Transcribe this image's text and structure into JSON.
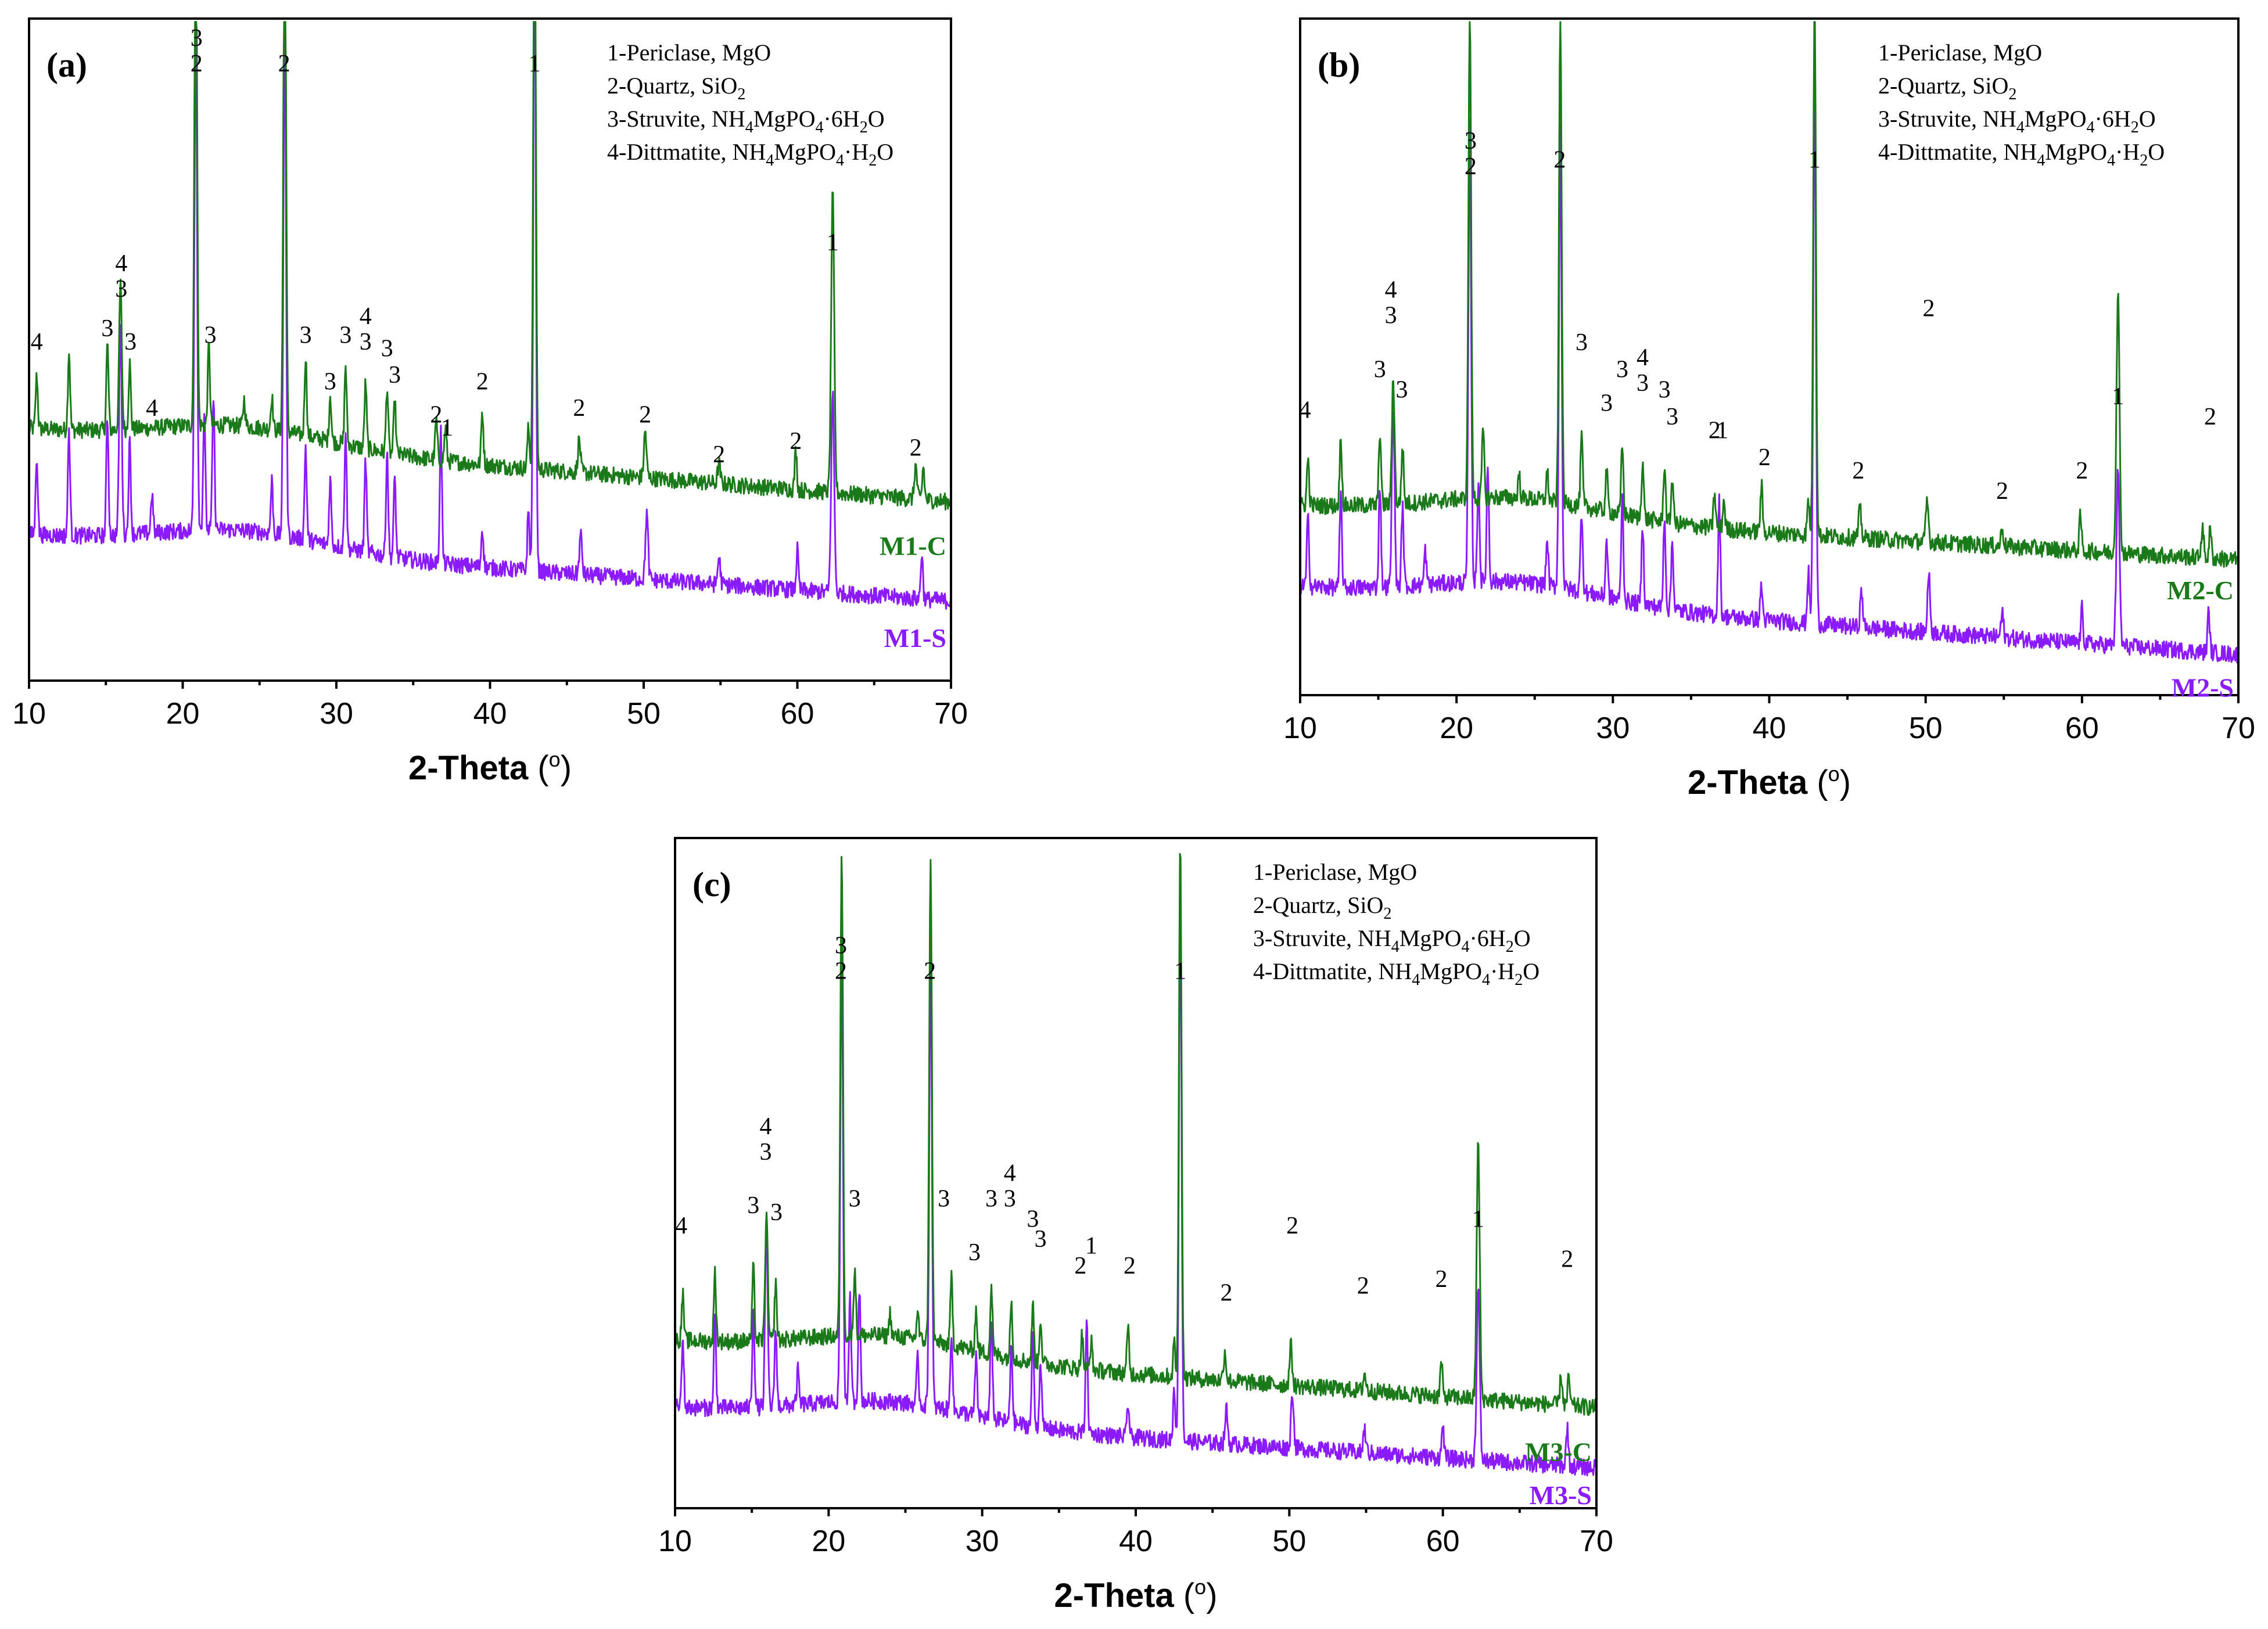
{
  "chart_data": [
    {
      "type": "line",
      "panel": "(a)",
      "xlabel": "2-Theta",
      "xunit": "o",
      "xlim": [
        10,
        70
      ],
      "xticks": [
        10,
        20,
        30,
        40,
        50,
        60,
        70
      ],
      "legend": [
        {
          "text": "1-Periclase, MgO"
        },
        {
          "text": "2-Quartz, SiO",
          "sub": "2"
        },
        {
          "text": "3-Struvite, NH",
          "sub": "4",
          "rest": "MgPO",
          "sub2": "4",
          "rest2": "·6H",
          "sub3": "2",
          "rest3": "O"
        },
        {
          "text": "4-Dittmatite, NH",
          "sub": "4",
          "rest": "MgPO",
          "sub2": "4",
          "rest2": "·H",
          "sub3": "2",
          "rest3": "O"
        }
      ],
      "series": [
        {
          "name": "M1-C",
          "color": "#1a7a1a"
        },
        {
          "name": "M1-S",
          "color": "#8b1aff"
        }
      ],
      "peak_labels": [
        {
          "x": 10.5,
          "labels": [
            "4"
          ],
          "level": 0.5
        },
        {
          "x": 15.1,
          "labels": [
            "3"
          ],
          "level": 0.52
        },
        {
          "x": 16.0,
          "labels": [
            "4",
            "3"
          ],
          "level": 0.58
        },
        {
          "x": 16.6,
          "labels": [
            "3"
          ],
          "level": 0.5
        },
        {
          "x": 18.0,
          "labels": [
            "4"
          ],
          "level": 0.4
        },
        {
          "x": 20.9,
          "labels": [
            "3",
            "2"
          ],
          "level": 0.92
        },
        {
          "x": 21.8,
          "labels": [
            "3"
          ],
          "level": 0.51
        },
        {
          "x": 26.6,
          "labels": [
            "2"
          ],
          "level": 0.92
        },
        {
          "x": 28.0,
          "labels": [
            "3"
          ],
          "level": 0.51
        },
        {
          "x": 29.6,
          "labels": [
            "3"
          ],
          "level": 0.44
        },
        {
          "x": 30.6,
          "labels": [
            "3"
          ],
          "level": 0.51
        },
        {
          "x": 31.9,
          "labels": [
            "4",
            "3"
          ],
          "level": 0.5
        },
        {
          "x": 33.3,
          "labels": [
            "3"
          ],
          "level": 0.49
        },
        {
          "x": 33.8,
          "labels": [
            "3"
          ],
          "level": 0.45
        },
        {
          "x": 36.5,
          "labels": [
            "2"
          ],
          "level": 0.39
        },
        {
          "x": 37.2,
          "labels": [
            "1"
          ],
          "level": 0.37
        },
        {
          "x": 39.5,
          "labels": [
            "2"
          ],
          "level": 0.44
        },
        {
          "x": 42.9,
          "labels": [
            "1"
          ],
          "level": 0.92
        },
        {
          "x": 45.8,
          "labels": [
            "2"
          ],
          "level": 0.4
        },
        {
          "x": 50.1,
          "labels": [
            "2"
          ],
          "level": 0.39
        },
        {
          "x": 54.9,
          "labels": [
            "2"
          ],
          "level": 0.33
        },
        {
          "x": 59.9,
          "labels": [
            "2"
          ],
          "level": 0.35
        },
        {
          "x": 62.3,
          "labels": [
            "1"
          ],
          "level": 0.65
        },
        {
          "x": 67.7,
          "labels": [
            "2"
          ],
          "level": 0.34
        }
      ]
    },
    {
      "type": "line",
      "panel": "(b)",
      "xlabel": "2-Theta",
      "xunit": "o",
      "xlim": [
        10,
        70
      ],
      "xticks": [
        10,
        20,
        30,
        40,
        50,
        60,
        70
      ],
      "legend": [
        {
          "text": "1-Periclase, MgO"
        },
        {
          "text": "2-Quartz, SiO",
          "sub": "2"
        },
        {
          "text": "3-Struvite, NH",
          "sub": "4",
          "rest": "MgPO",
          "sub2": "4",
          "rest2": "·6H",
          "sub3": "2",
          "rest3": "O"
        },
        {
          "text": "4-Dittmatite, NH",
          "sub": "4",
          "rest": "MgPO",
          "sub2": "4",
          "rest2": "·H",
          "sub3": "2",
          "rest3": "O"
        }
      ],
      "series": [
        {
          "name": "M2-C",
          "color": "#1a7a1a"
        },
        {
          "name": "M2-S",
          "color": "#8b1aff"
        }
      ],
      "peak_labels": [
        {
          "x": 10.3,
          "labels": [
            "4"
          ],
          "level": 0.41
        },
        {
          "x": 15.1,
          "labels": [
            "3"
          ],
          "level": 0.47
        },
        {
          "x": 15.8,
          "labels": [
            "4",
            "3"
          ],
          "level": 0.55
        },
        {
          "x": 16.5,
          "labels": [
            "3"
          ],
          "level": 0.44
        },
        {
          "x": 20.9,
          "labels": [
            "3",
            "2"
          ],
          "level": 0.77
        },
        {
          "x": 26.6,
          "labels": [
            "2"
          ],
          "level": 0.78
        },
        {
          "x": 28.0,
          "labels": [
            "3"
          ],
          "level": 0.51
        },
        {
          "x": 29.6,
          "labels": [
            "3"
          ],
          "level": 0.42
        },
        {
          "x": 30.6,
          "labels": [
            "3"
          ],
          "level": 0.47
        },
        {
          "x": 31.9,
          "labels": [
            "4",
            "3"
          ],
          "level": 0.45
        },
        {
          "x": 33.3,
          "labels": [
            "3"
          ],
          "level": 0.44
        },
        {
          "x": 33.8,
          "labels": [
            "3"
          ],
          "level": 0.4
        },
        {
          "x": 36.5,
          "labels": [
            "2"
          ],
          "level": 0.38
        },
        {
          "x": 37.0,
          "labels": [
            "1"
          ],
          "level": 0.38
        },
        {
          "x": 39.7,
          "labels": [
            "2"
          ],
          "level": 0.34
        },
        {
          "x": 42.9,
          "labels": [
            "1"
          ],
          "level": 0.78
        },
        {
          "x": 45.7,
          "labels": [
            "2"
          ],
          "level": 0.32
        },
        {
          "x": 50.2,
          "labels": [
            "2"
          ],
          "level": 0.56
        },
        {
          "x": 54.9,
          "labels": [
            "2"
          ],
          "level": 0.29
        },
        {
          "x": 60.0,
          "labels": [
            "2"
          ],
          "level": 0.32
        },
        {
          "x": 62.3,
          "labels": [
            "1"
          ],
          "level": 0.43
        },
        {
          "x": 68.2,
          "labels": [
            "2"
          ],
          "level": 0.4
        }
      ]
    },
    {
      "type": "line",
      "panel": "(c)",
      "xlabel": "2-Theta",
      "xunit": "o",
      "xlim": [
        10,
        70
      ],
      "xticks": [
        10,
        20,
        30,
        40,
        50,
        60,
        70
      ],
      "legend": [
        {
          "text": "1-Periclase, MgO"
        },
        {
          "text": "2-Quartz, SiO",
          "sub": "2"
        },
        {
          "text": "3-Struvite, NH",
          "sub": "4",
          "rest": "MgPO",
          "sub2": "4",
          "rest2": "·6H",
          "sub3": "2",
          "rest3": "O"
        },
        {
          "text": "4-Dittmatite, NH",
          "sub": "4",
          "rest": "MgPO",
          "sub2": "4",
          "rest2": "·H",
          "sub3": "2",
          "rest3": "O"
        }
      ],
      "series": [
        {
          "name": "M3-C",
          "color": "#1a7a1a"
        },
        {
          "name": "M3-S",
          "color": "#8b1aff"
        }
      ],
      "peak_labels": [
        {
          "x": 10.4,
          "labels": [
            "4"
          ],
          "level": 0.41
        },
        {
          "x": 15.1,
          "labels": [
            "3"
          ],
          "level": 0.44
        },
        {
          "x": 15.9,
          "labels": [
            "4",
            "3"
          ],
          "level": 0.52
        },
        {
          "x": 16.6,
          "labels": [
            "3"
          ],
          "level": 0.43
        },
        {
          "x": 20.8,
          "labels": [
            "3",
            "2"
          ],
          "level": 0.79
        },
        {
          "x": 21.7,
          "labels": [
            "3"
          ],
          "level": 0.45
        },
        {
          "x": 26.6,
          "labels": [
            "2"
          ],
          "level": 0.79
        },
        {
          "x": 27.5,
          "labels": [
            "3"
          ],
          "level": 0.45
        },
        {
          "x": 29.5,
          "labels": [
            "3"
          ],
          "level": 0.37
        },
        {
          "x": 30.6,
          "labels": [
            "3"
          ],
          "level": 0.45
        },
        {
          "x": 31.8,
          "labels": [
            "4",
            "3"
          ],
          "level": 0.45
        },
        {
          "x": 33.3,
          "labels": [
            "3"
          ],
          "level": 0.42
        },
        {
          "x": 33.8,
          "labels": [
            "3"
          ],
          "level": 0.39
        },
        {
          "x": 36.4,
          "labels": [
            "2"
          ],
          "level": 0.35
        },
        {
          "x": 37.1,
          "labels": [
            "1"
          ],
          "level": 0.38
        },
        {
          "x": 39.6,
          "labels": [
            "2"
          ],
          "level": 0.35
        },
        {
          "x": 42.9,
          "labels": [
            "1"
          ],
          "level": 0.79
        },
        {
          "x": 45.9,
          "labels": [
            "2"
          ],
          "level": 0.31
        },
        {
          "x": 50.2,
          "labels": [
            "2"
          ],
          "level": 0.41
        },
        {
          "x": 54.8,
          "labels": [
            "2"
          ],
          "level": 0.32
        },
        {
          "x": 59.9,
          "labels": [
            "2"
          ],
          "level": 0.33
        },
        {
          "x": 62.3,
          "labels": [
            "1"
          ],
          "level": 0.42
        },
        {
          "x": 68.1,
          "labels": [
            "2"
          ],
          "level": 0.36
        }
      ]
    }
  ]
}
